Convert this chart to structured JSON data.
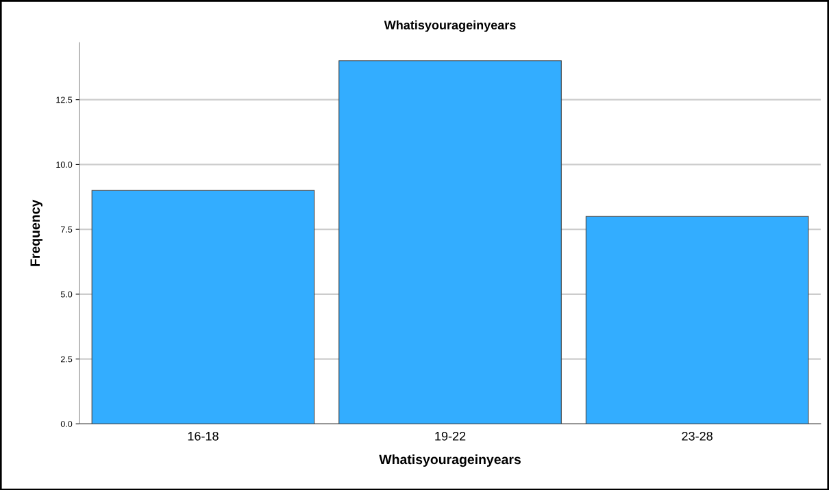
{
  "chart_data": {
    "type": "bar",
    "title": "Whatisyourageinyears",
    "xlabel": "Whatisyourageinyears",
    "ylabel": "Frequency",
    "categories": [
      "16-18",
      "19-22",
      "23-28"
    ],
    "values": [
      9,
      14,
      8
    ],
    "color": "#33adff",
    "ylim": [
      0,
      14.7
    ],
    "yticks": [
      {
        "value": 0,
        "label": "0.0"
      },
      2.5,
      {
        "value": 5,
        "label": "5.0"
      },
      7.5,
      {
        "value": 10,
        "label": "10.0"
      },
      12.5
    ],
    "grid": "y"
  }
}
